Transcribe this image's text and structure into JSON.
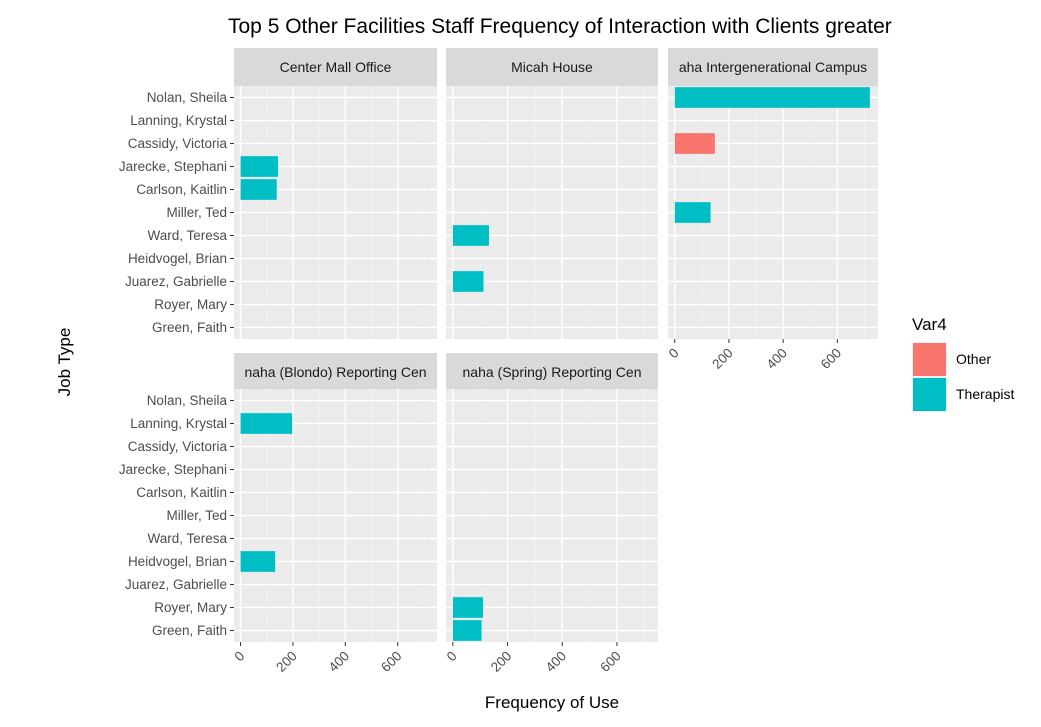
{
  "chart_data": {
    "type": "bar",
    "orientation": "horizontal",
    "title": "Top 5 Other Facilities Staff Frequency of Interaction with Clients greater",
    "xlabel": "Frequency of Use",
    "ylabel": "Job Type",
    "xlim": [
      -25,
      750
    ],
    "xticks": [
      0,
      200,
      400,
      600
    ],
    "grid": true,
    "categories": [
      "Nolan, Sheila",
      "Lanning, Krystal",
      "Cassidy, Victoria",
      "Jarecke, Stephani",
      "Carlson, Kaitlin",
      "Miller, Ted",
      "Ward, Teresa",
      "Heidvogel, Brian",
      "Juarez, Gabrielle",
      "Royer, Mary",
      "Green, Faith"
    ],
    "legend": {
      "title": "Var4",
      "placement": "right",
      "entries": [
        {
          "name": "Other",
          "color": "#F8766D"
        },
        {
          "name": "Therapist",
          "color": "#00BFC4"
        }
      ]
    },
    "panels": [
      {
        "facet": "Center Mall Office",
        "bars": [
          {
            "category": "Jarecke, Stephani",
            "value": 143,
            "group": "Therapist"
          },
          {
            "category": "Carlson, Kaitlin",
            "value": 138,
            "group": "Therapist"
          }
        ]
      },
      {
        "facet": "Micah House",
        "bars": [
          {
            "category": "Ward, Teresa",
            "value": 132,
            "group": "Therapist"
          },
          {
            "category": "Juarez, Gabrielle",
            "value": 112,
            "group": "Therapist"
          }
        ]
      },
      {
        "facet": "aha Intergenerational Campus",
        "bars": [
          {
            "category": "Nolan, Sheila",
            "value": 720,
            "group": "Therapist"
          },
          {
            "category": "Cassidy, Victoria",
            "value": 148,
            "group": "Other"
          },
          {
            "category": "Miller, Ted",
            "value": 132,
            "group": "Therapist"
          }
        ]
      },
      {
        "facet": "naha (Blondo) Reporting Cen",
        "bars": [
          {
            "category": "Lanning, Krystal",
            "value": 197,
            "group": "Therapist"
          },
          {
            "category": "Heidvogel, Brian",
            "value": 132,
            "group": "Therapist"
          }
        ]
      },
      {
        "facet": "naha (Spring) Reporting Cen",
        "bars": [
          {
            "category": "Royer, Mary",
            "value": 110,
            "group": "Therapist"
          },
          {
            "category": "Green, Faith",
            "value": 105,
            "group": "Therapist"
          }
        ]
      }
    ]
  }
}
